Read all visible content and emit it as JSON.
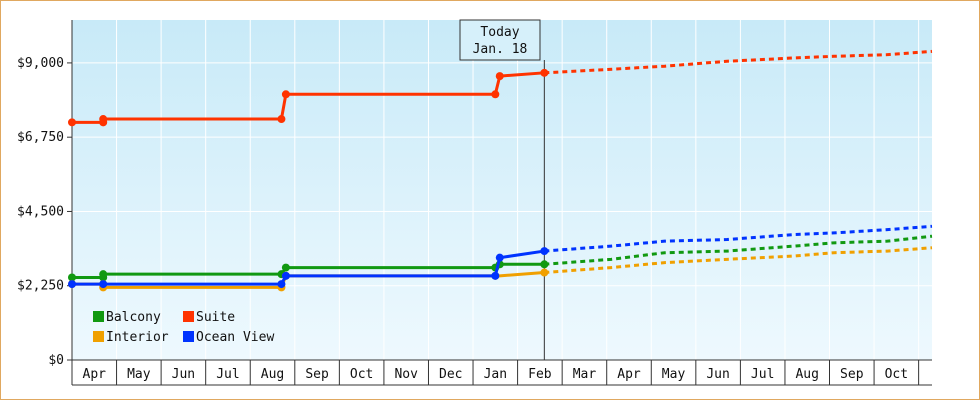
{
  "chart_data": {
    "type": "line",
    "step": true,
    "today_marker": {
      "title": "Today",
      "date": "Jan. 18",
      "x": 10.6
    },
    "y_ticks": [
      0,
      2250,
      4500,
      6750,
      9000
    ],
    "y_tick_labels": [
      "$0",
      "$2,250",
      "$4,500",
      "$6,750",
      "$9,000"
    ],
    "ylim": [
      0,
      10300
    ],
    "xlim": [
      0,
      19.3
    ],
    "x_ticks": [
      0.5,
      1.5,
      2.5,
      3.5,
      4.5,
      5.5,
      6.5,
      7.5,
      8.5,
      9.5,
      10.5,
      11.5,
      12.5,
      13.5,
      14.5,
      15.5,
      16.5,
      17.5,
      18.5
    ],
    "x_tick_labels": [
      "Apr",
      "May",
      "Jun",
      "Jul",
      "Aug",
      "Sep",
      "Oct",
      "Nov",
      "Dec",
      "Jan",
      "Feb",
      "Mar",
      "Apr",
      "May",
      "Jun",
      "Jul",
      "Aug",
      "Sep",
      "Oct"
    ],
    "grid": true,
    "legend_position": "bottom-left",
    "series": [
      {
        "name": "Balcony",
        "color": "#119911",
        "historical": [
          [
            0,
            2500
          ],
          [
            0.7,
            2500
          ],
          [
            0.7,
            2600
          ],
          [
            4.7,
            2600
          ],
          [
            4.8,
            2800
          ],
          [
            9.5,
            2800
          ],
          [
            9.6,
            2900
          ],
          [
            10.6,
            2900
          ]
        ],
        "markers": [
          [
            0,
            2500
          ],
          [
            0.7,
            2500
          ],
          [
            0.7,
            2600
          ],
          [
            4.7,
            2600
          ],
          [
            4.8,
            2800
          ],
          [
            9.5,
            2800
          ],
          [
            9.6,
            2900
          ],
          [
            10.6,
            2900
          ]
        ],
        "forecast": [
          [
            10.6,
            2900
          ],
          [
            12.1,
            3050
          ],
          [
            13.3,
            3250
          ],
          [
            14.7,
            3300
          ],
          [
            16.2,
            3450
          ],
          [
            17.1,
            3550
          ],
          [
            18.3,
            3600
          ],
          [
            19.3,
            3750
          ]
        ]
      },
      {
        "name": "Suite",
        "color": "#ff3300",
        "historical": [
          [
            0,
            7200
          ],
          [
            0.7,
            7200
          ],
          [
            0.7,
            7300
          ],
          [
            4.7,
            7300
          ],
          [
            4.8,
            8050
          ],
          [
            9.5,
            8050
          ],
          [
            9.6,
            8600
          ],
          [
            10.6,
            8700
          ]
        ],
        "markers": [
          [
            0,
            7200
          ],
          [
            0.7,
            7200
          ],
          [
            0.7,
            7300
          ],
          [
            4.7,
            7300
          ],
          [
            4.8,
            8050
          ],
          [
            9.5,
            8050
          ],
          [
            9.6,
            8600
          ],
          [
            10.6,
            8700
          ]
        ],
        "forecast": [
          [
            10.6,
            8700
          ],
          [
            12.0,
            8800
          ],
          [
            13.3,
            8900
          ],
          [
            14.7,
            9050
          ],
          [
            16.2,
            9150
          ],
          [
            17.1,
            9200
          ],
          [
            18.3,
            9250
          ],
          [
            19.3,
            9350
          ]
        ]
      },
      {
        "name": "Interior",
        "color": "#f0a000",
        "historical": [
          [
            0,
            2300
          ],
          [
            0.7,
            2300
          ],
          [
            0.7,
            2200
          ],
          [
            4.7,
            2200
          ],
          [
            4.8,
            2550
          ],
          [
            9.5,
            2550
          ],
          [
            9.6,
            2550
          ],
          [
            10.6,
            2650
          ]
        ],
        "markers": [
          [
            0,
            2300
          ],
          [
            0.7,
            2300
          ],
          [
            0.7,
            2200
          ],
          [
            4.7,
            2200
          ],
          [
            4.8,
            2550
          ],
          [
            9.5,
            2550
          ],
          [
            10.6,
            2650
          ]
        ],
        "forecast": [
          [
            10.6,
            2650
          ],
          [
            12.1,
            2800
          ],
          [
            13.3,
            2950
          ],
          [
            14.7,
            3050
          ],
          [
            16.2,
            3150
          ],
          [
            17.1,
            3250
          ],
          [
            18.3,
            3300
          ],
          [
            19.3,
            3400
          ]
        ]
      },
      {
        "name": "Ocean View",
        "color": "#0033ff",
        "historical": [
          [
            0,
            2300
          ],
          [
            0.7,
            2300
          ],
          [
            0.7,
            2300
          ],
          [
            4.7,
            2300
          ],
          [
            4.8,
            2550
          ],
          [
            9.5,
            2550
          ],
          [
            9.6,
            3100
          ],
          [
            10.6,
            3300
          ]
        ],
        "markers": [
          [
            0,
            2300
          ],
          [
            0.7,
            2300
          ],
          [
            4.7,
            2300
          ],
          [
            4.8,
            2550
          ],
          [
            9.5,
            2550
          ],
          [
            9.6,
            3100
          ],
          [
            10.6,
            3300
          ]
        ],
        "forecast": [
          [
            10.6,
            3300
          ],
          [
            12.1,
            3450
          ],
          [
            13.3,
            3600
          ],
          [
            14.7,
            3650
          ],
          [
            16.2,
            3800
          ],
          [
            17.1,
            3850
          ],
          [
            18.3,
            3950
          ],
          [
            19.3,
            4050
          ]
        ]
      }
    ],
    "legend_order": [
      "Balcony",
      "Suite",
      "Interior",
      "Ocean View"
    ]
  }
}
